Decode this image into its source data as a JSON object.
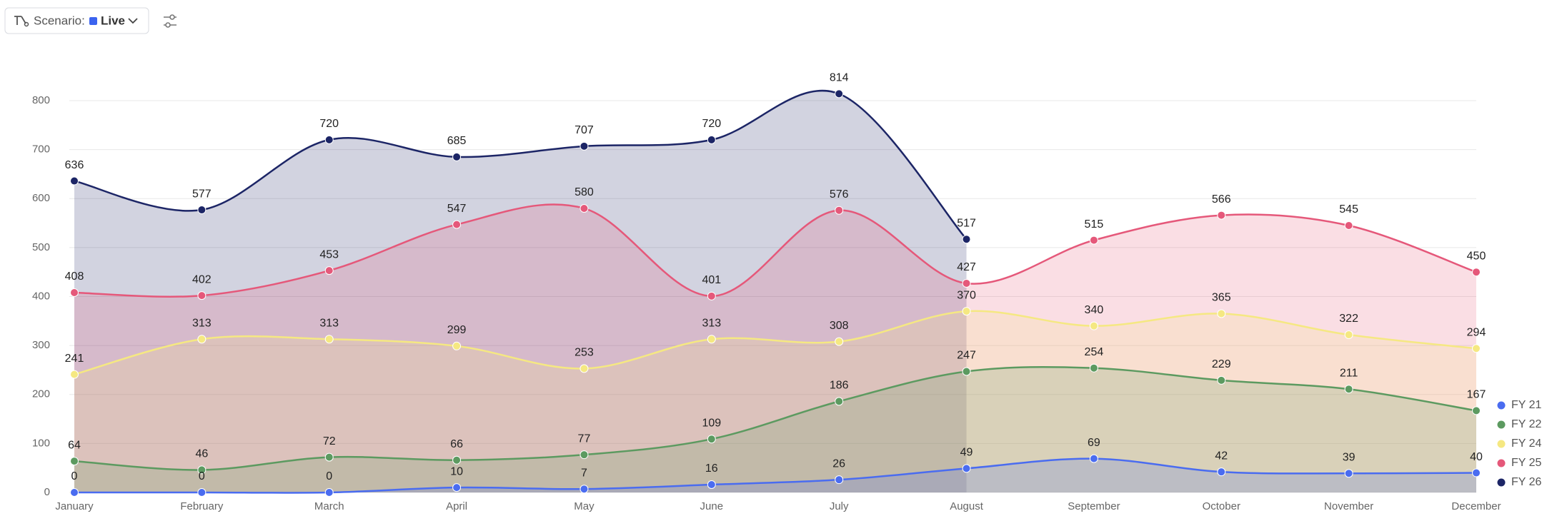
{
  "toolbar": {
    "scenario_label": "Scenario:",
    "scenario_value": "Live"
  },
  "chart_data": {
    "type": "area",
    "categories": [
      "January",
      "February",
      "March",
      "April",
      "May",
      "June",
      "July",
      "August",
      "September",
      "October",
      "November",
      "December"
    ],
    "series": [
      {
        "name": "FY 21",
        "color": "#4a6cf0",
        "values": [
          0,
          0,
          0,
          10,
          7,
          16,
          26,
          49,
          69,
          42,
          39,
          40
        ]
      },
      {
        "name": "FY 22",
        "color": "#5c9a60",
        "values": [
          64,
          46,
          72,
          66,
          77,
          109,
          186,
          247,
          254,
          229,
          211,
          167
        ]
      },
      {
        "name": "FY 24",
        "color": "#f5e882",
        "values": [
          241,
          313,
          313,
          299,
          253,
          313,
          308,
          370,
          340,
          365,
          322,
          294
        ]
      },
      {
        "name": "FY 25",
        "color": "#e5587a",
        "values": [
          408,
          402,
          453,
          547,
          580,
          401,
          576,
          427,
          515,
          566,
          545,
          450
        ]
      },
      {
        "name": "FY 26",
        "color": "#1c2566",
        "values": [
          636,
          577,
          720,
          685,
          707,
          720,
          814,
          517,
          null,
          null,
          null,
          null
        ]
      }
    ],
    "ylim": [
      0,
      800
    ],
    "yticks": [
      0,
      100,
      200,
      300,
      400,
      500,
      600,
      700,
      800
    ],
    "grid": true,
    "legend": "bottom-right"
  }
}
